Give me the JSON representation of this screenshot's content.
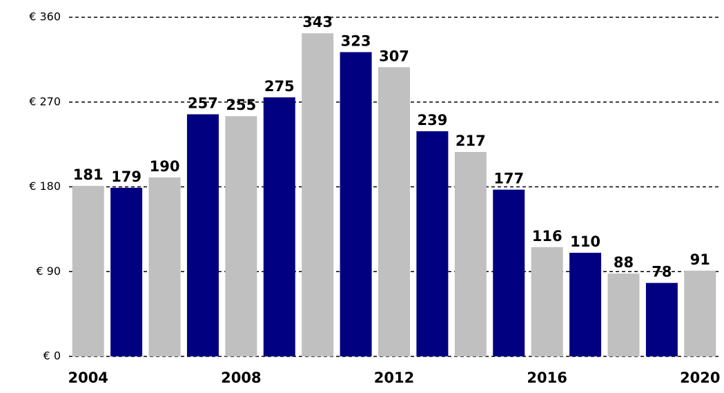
{
  "chart_data": {
    "type": "bar",
    "categories": [
      "2004",
      null,
      null,
      null,
      "2008",
      null,
      null,
      null,
      "2012",
      null,
      null,
      null,
      "2016",
      null,
      null,
      null,
      "2020"
    ],
    "values": [
      181,
      179,
      190,
      257,
      255,
      275,
      343,
      323,
      307,
      239,
      217,
      177,
      116,
      110,
      88,
      78,
      91
    ],
    "colors": [
      "#c0c0c0",
      "#000080",
      "#c0c0c0",
      "#000080",
      "#c0c0c0",
      "#000080",
      "#c0c0c0",
      "#000080",
      "#c0c0c0",
      "#000080",
      "#c0c0c0",
      "#000080",
      "#c0c0c0",
      "#000080",
      "#c0c0c0",
      "#000080",
      "#c0c0c0"
    ],
    "ylim": [
      0,
      360
    ],
    "yticks": [
      {
        "value": 0,
        "label": "€ 0"
      },
      {
        "value": 90,
        "label": "€ 90"
      },
      {
        "value": 180,
        "label": "€ 180"
      },
      {
        "value": 270,
        "label": "€ 270"
      },
      {
        "value": 360,
        "label": "€ 360"
      }
    ],
    "grid": true
  }
}
